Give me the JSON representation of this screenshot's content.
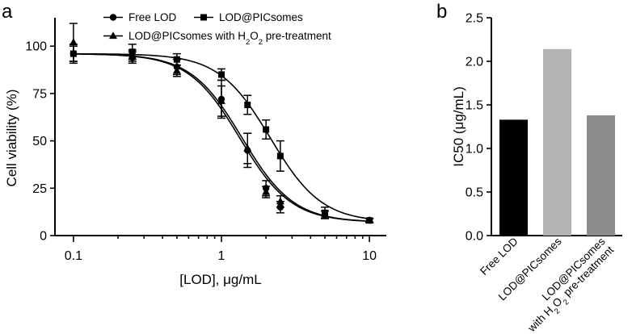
{
  "chart_data": [
    {
      "panel": "a",
      "type": "scatter",
      "xscale": "log",
      "xlabel": "[LOD], μg/mL",
      "ylabel": "Cell viability (%)",
      "xlim": [
        0.075,
        13
      ],
      "ylim": [
        0,
        115
      ],
      "xticks": [
        0.1,
        1,
        10
      ],
      "xtick_labels": [
        "0.1",
        "1",
        "10"
      ],
      "yticks": [
        0,
        25,
        50,
        75,
        100
      ],
      "ytick_labels": [
        "0",
        "25",
        "50",
        "75",
        "100"
      ],
      "legend": [
        "Free LOD",
        "LOD@PICsomes",
        "LOD@PICsomes with H2O2 pre-treatment"
      ],
      "series": [
        {
          "name": "Free LOD",
          "marker": "circle",
          "x": [
            0.1,
            0.25,
            0.5,
            1,
            1.5,
            2,
            2.5,
            5,
            10
          ],
          "y": [
            96,
            94,
            89,
            72,
            45,
            25,
            15,
            11,
            8
          ],
          "err": [
            5,
            3,
            4,
            10,
            9,
            4,
            3,
            2,
            1
          ],
          "fit": {
            "bottom": 7,
            "top": 96,
            "ic50": 1.33,
            "hill": 2.5
          }
        },
        {
          "name": "LOD@PICsomes",
          "marker": "square",
          "x": [
            0.1,
            0.25,
            0.5,
            1,
            1.5,
            2,
            2.5,
            5,
            10
          ],
          "y": [
            96,
            97,
            93,
            85,
            69,
            56,
            42,
            12,
            8
          ],
          "err": [
            4,
            4,
            3,
            3,
            5,
            5,
            8,
            3,
            1
          ],
          "fit": {
            "bottom": 7,
            "top": 96,
            "ic50": 2.14,
            "hill": 2.5
          }
        },
        {
          "name": "LOD@PICsomes with H2O2 pre-treatment",
          "marker": "triangle",
          "x": [
            0.1,
            0.25,
            0.5,
            1,
            1.5,
            2,
            2.5,
            5,
            10
          ],
          "y": [
            102,
            95,
            87,
            71,
            46,
            23,
            18,
            11,
            8
          ],
          "err": [
            10,
            3,
            3,
            8,
            8,
            3,
            3,
            2,
            1
          ],
          "fit": {
            "bottom": 7,
            "top": 96,
            "ic50": 1.38,
            "hill": 2.5
          }
        }
      ]
    },
    {
      "panel": "b",
      "type": "bar",
      "ylabel": "IC50 (μg/mL)",
      "ylim": [
        0,
        2.5
      ],
      "yticks": [
        0,
        0.5,
        1,
        1.5,
        2,
        2.5
      ],
      "ytick_labels": [
        "0.0",
        "0.5",
        "1.0",
        "1.5",
        "2.0",
        "2.5"
      ],
      "categories": [
        "Free LOD",
        "LOD@PICsomes",
        "LOD@PICsomes with H2O2 pre-treatment"
      ],
      "category_lines": [
        [
          "Free LOD"
        ],
        [
          "LOD@PICsomes"
        ],
        [
          "LOD@PICsomes",
          "with H2O2 pre-treatment"
        ]
      ],
      "values": [
        1.33,
        2.14,
        1.38
      ],
      "colors": [
        "#000000",
        "#b3b3b6",
        "#8c8c8c"
      ]
    }
  ]
}
